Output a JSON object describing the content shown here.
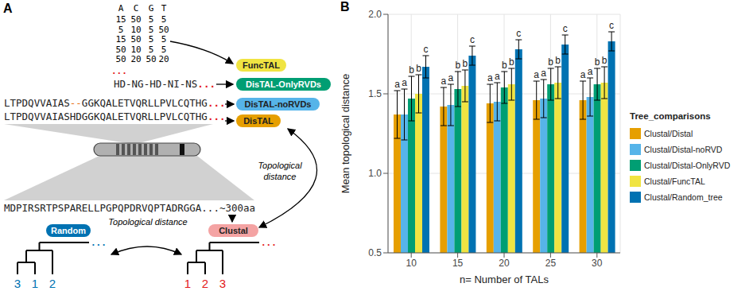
{
  "diagram": {
    "panel_label": "A",
    "matrix": {
      "header": [
        "A",
        "C",
        "G",
        "T"
      ],
      "rows": [
        [
          15,
          50,
          5,
          5
        ],
        [
          5,
          10,
          5,
          50
        ],
        [
          15,
          50,
          5,
          5
        ],
        [
          50,
          10,
          5,
          5
        ],
        [
          50,
          20,
          50,
          20
        ]
      ]
    },
    "ellipsis": "...",
    "rvds": "HD-NG-HD-NI-NS",
    "sequence_gapped": [
      "LTPDQVVAIAS",
      "--",
      "GGKQALETVQRLLPVLCQTHG"
    ],
    "sequence": "LTPDQVVAIASHDGGKQALETVQRLLPVLCQTHG",
    "protein": "MDPIRSRTPSPARELLPGPQPDRVQPTADRGGA...~300aa",
    "methods": [
      {
        "label": "FuncTAL",
        "color": "#F0E442"
      },
      {
        "label": "DisTAL-OnlyRVDs",
        "color": "#009E73"
      },
      {
        "label": "DisTAL-noRVDs",
        "color": "#56B4E9"
      },
      {
        "label": "DisTAL",
        "color": "#E69F00"
      }
    ],
    "clustal": {
      "label": "Clustal",
      "color": "#F4A3A3",
      "leaves": [
        "1",
        "2",
        "3"
      ]
    },
    "random": {
      "label": "Random",
      "color": "#0072B2",
      "leaves": [
        "3",
        "1",
        "2"
      ]
    },
    "distance_labels": [
      "Topological distance",
      "Topological distance"
    ]
  },
  "chart_data": {
    "type": "bar",
    "panel_label": "B",
    "x_label": "n= Number of TALs",
    "y_label": "Mean topological distance",
    "legend_title": "Tree_comparisons",
    "legend": "right",
    "grid": true,
    "categories": [
      10,
      15,
      20,
      25,
      30
    ],
    "ylim": [
      0.5,
      2.0
    ],
    "yticks": [
      0.5,
      {
        "value": 1.0,
        "label": "1.0"
      },
      1.5,
      {
        "value": 2.0,
        "label": "2.0"
      }
    ],
    "series": [
      {
        "name": "Clustal/Distal",
        "color": "#E69F00",
        "values": [
          1.37,
          1.42,
          1.44,
          1.46,
          1.46
        ],
        "errors": [
          0.15,
          0.12,
          0.12,
          0.12,
          0.12
        ],
        "letters": [
          "a",
          "a",
          "a",
          "a",
          "a"
        ]
      },
      {
        "name": "Clustal/Distal-noRVD",
        "color": "#56B4E9",
        "values": [
          1.37,
          1.43,
          1.45,
          1.47,
          1.48
        ],
        "errors": [
          0.16,
          0.13,
          0.12,
          0.12,
          0.12
        ],
        "letters": [
          "a",
          "a",
          "a",
          "a",
          "a"
        ]
      },
      {
        "name": "Clustal/Distal-OnlyRVD",
        "color": "#009E73",
        "values": [
          1.47,
          1.53,
          1.54,
          1.56,
          1.56
        ],
        "errors": [
          0.14,
          0.11,
          0.1,
          0.1,
          0.1
        ],
        "letters": [
          "b",
          "b",
          "b",
          "b",
          "b"
        ]
      },
      {
        "name": "Clustal/FuncTAL",
        "color": "#F0E442",
        "values": [
          1.5,
          1.55,
          1.56,
          1.57,
          1.57
        ],
        "errors": [
          0.12,
          0.1,
          0.1,
          0.1,
          0.1
        ],
        "letters": [
          "b",
          "b",
          "b",
          "b",
          "b"
        ]
      },
      {
        "name": "Clustal/Random_tree",
        "color": "#0072B2",
        "values": [
          1.67,
          1.74,
          1.78,
          1.81,
          1.83
        ],
        "errors": [
          0.07,
          0.06,
          0.06,
          0.06,
          0.06
        ],
        "letters": [
          "c",
          "c",
          "c",
          "c",
          "c"
        ]
      }
    ]
  }
}
